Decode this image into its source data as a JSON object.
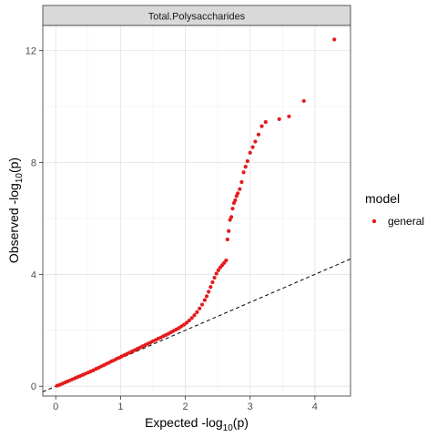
{
  "chart_data": {
    "type": "scatter",
    "facet_title": "Total.Polysaccharides",
    "xlabel": {
      "main": "Expected -log",
      "sub": "10",
      "tail": "(p)"
    },
    "ylabel": {
      "main": "Observed -log",
      "sub": "10",
      "tail": "(p)"
    },
    "xlim": [
      -0.2,
      4.55
    ],
    "ylim": [
      -0.35,
      12.9
    ],
    "x_ticks": [
      0,
      1,
      2,
      3,
      4
    ],
    "y_ticks": [
      0,
      4,
      8,
      12
    ],
    "x_tick_labels": [
      "0",
      "1",
      "2",
      "3",
      "4"
    ],
    "y_tick_labels": [
      "0",
      "4",
      "8",
      "12"
    ],
    "grid": true,
    "legend": {
      "title": "model",
      "position": "right",
      "entries": [
        "general"
      ]
    },
    "point_color": "#e41a1c",
    "reference_line": {
      "slope": 1,
      "intercept": 0,
      "style": "dashed",
      "color": "#000000"
    },
    "series": [
      {
        "name": "general",
        "points": [
          [
            0.02,
            0.02
          ],
          [
            0.06,
            0.05
          ],
          [
            0.1,
            0.09
          ],
          [
            0.14,
            0.13
          ],
          [
            0.18,
            0.17
          ],
          [
            0.22,
            0.21
          ],
          [
            0.26,
            0.25
          ],
          [
            0.3,
            0.29
          ],
          [
            0.34,
            0.33
          ],
          [
            0.38,
            0.37
          ],
          [
            0.42,
            0.41
          ],
          [
            0.46,
            0.45
          ],
          [
            0.5,
            0.49
          ],
          [
            0.54,
            0.53
          ],
          [
            0.58,
            0.57
          ],
          [
            0.62,
            0.62
          ],
          [
            0.66,
            0.66
          ],
          [
            0.7,
            0.71
          ],
          [
            0.74,
            0.75
          ],
          [
            0.78,
            0.8
          ],
          [
            0.82,
            0.84
          ],
          [
            0.86,
            0.89
          ],
          [
            0.9,
            0.93
          ],
          [
            0.94,
            0.98
          ],
          [
            0.98,
            1.02
          ],
          [
            1.02,
            1.07
          ],
          [
            1.06,
            1.11
          ],
          [
            1.1,
            1.16
          ],
          [
            1.14,
            1.2
          ],
          [
            1.18,
            1.25
          ],
          [
            1.22,
            1.29
          ],
          [
            1.26,
            1.34
          ],
          [
            1.3,
            1.38
          ],
          [
            1.34,
            1.43
          ],
          [
            1.38,
            1.47
          ],
          [
            1.42,
            1.52
          ],
          [
            1.46,
            1.56
          ],
          [
            1.5,
            1.61
          ],
          [
            1.54,
            1.65
          ],
          [
            1.58,
            1.7
          ],
          [
            1.62,
            1.74
          ],
          [
            1.66,
            1.79
          ],
          [
            1.7,
            1.83
          ],
          [
            1.74,
            1.88
          ],
          [
            1.78,
            1.93
          ],
          [
            1.82,
            1.98
          ],
          [
            1.86,
            2.03
          ],
          [
            1.9,
            2.08
          ],
          [
            1.94,
            2.14
          ],
          [
            1.98,
            2.2
          ],
          [
            2.02,
            2.27
          ],
          [
            2.06,
            2.35
          ],
          [
            2.1,
            2.44
          ],
          [
            2.14,
            2.54
          ],
          [
            2.18,
            2.65
          ],
          [
            2.22,
            2.78
          ],
          [
            2.26,
            2.92
          ],
          [
            2.3,
            3.08
          ],
          [
            2.33,
            3.22
          ],
          [
            2.36,
            3.38
          ],
          [
            2.39,
            3.55
          ],
          [
            2.42,
            3.72
          ],
          [
            2.45,
            3.88
          ],
          [
            2.48,
            4.03
          ],
          [
            2.51,
            4.15
          ],
          [
            2.54,
            4.25
          ],
          [
            2.57,
            4.33
          ],
          [
            2.6,
            4.41
          ],
          [
            2.63,
            4.5
          ],
          [
            2.65,
            5.25
          ],
          [
            2.67,
            5.55
          ],
          [
            2.69,
            5.95
          ],
          [
            2.71,
            6.05
          ],
          [
            2.73,
            6.35
          ],
          [
            2.75,
            6.55
          ],
          [
            2.77,
            6.65
          ],
          [
            2.79,
            6.8
          ],
          [
            2.81,
            6.9
          ],
          [
            2.84,
            7.05
          ],
          [
            2.87,
            7.3
          ],
          [
            2.9,
            7.65
          ],
          [
            2.93,
            7.85
          ],
          [
            2.96,
            8.05
          ],
          [
            3.0,
            8.35
          ],
          [
            3.04,
            8.55
          ],
          [
            3.08,
            8.75
          ],
          [
            3.13,
            9.0
          ],
          [
            3.18,
            9.3
          ],
          [
            3.24,
            9.45
          ],
          [
            3.45,
            9.55
          ],
          [
            3.6,
            9.65
          ],
          [
            3.83,
            10.2
          ],
          [
            4.3,
            12.4
          ]
        ]
      }
    ]
  }
}
